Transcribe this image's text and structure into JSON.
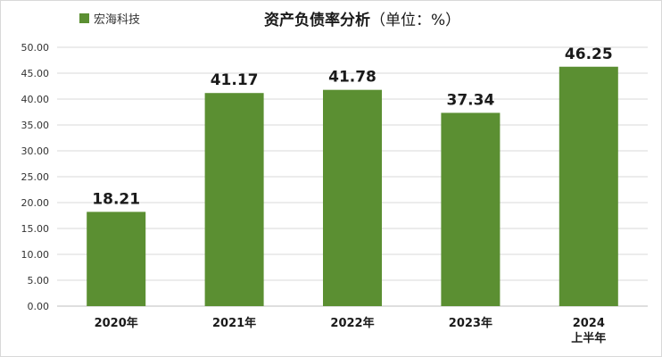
{
  "chart_data": {
    "type": "bar",
    "title": "资产负债率分析",
    "title_suffix": "（单位：%）",
    "categories": [
      [
        "2020年"
      ],
      [
        "2021年"
      ],
      [
        "2022年"
      ],
      [
        "2023年"
      ],
      [
        "2024",
        "上半年"
      ]
    ],
    "series": [
      {
        "name": "宏海科技",
        "values": [
          18.21,
          41.17,
          41.78,
          37.34,
          46.25
        ],
        "color": "#5b8f32"
      }
    ],
    "data_labels": [
      "18.21",
      "41.17",
      "41.78",
      "37.34",
      "46.25"
    ],
    "y_ticks": [
      "0.00",
      "5.00",
      "10.00",
      "15.00",
      "20.00",
      "25.00",
      "30.00",
      "35.00",
      "40.00",
      "45.00",
      "50.00"
    ],
    "ylim": [
      0,
      50
    ],
    "y_tick_step": 5,
    "grid": true,
    "legend_position": "top-left",
    "xlabel": "",
    "ylabel": ""
  },
  "colors": {
    "grid": "#d9d9d9",
    "axis": "#bfbfbf"
  }
}
